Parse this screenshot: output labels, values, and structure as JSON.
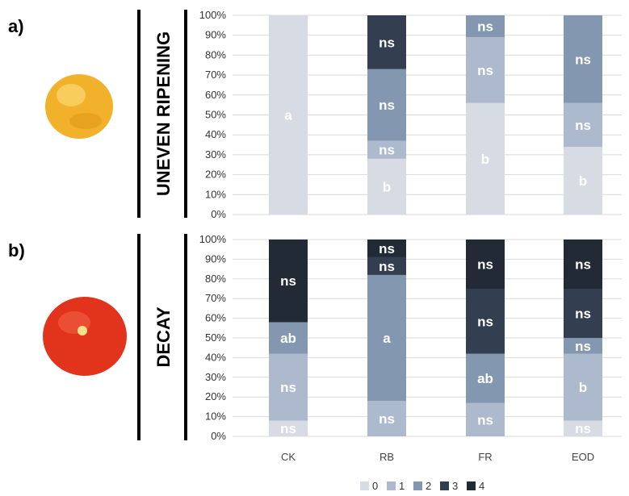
{
  "panel_labels": [
    "a)",
    "b)"
  ],
  "legend": {
    "items": [
      {
        "label": "0",
        "color": "#d6dbe4"
      },
      {
        "label": "1",
        "color": "#adb9cc"
      },
      {
        "label": "2",
        "color": "#8497b0"
      },
      {
        "label": "3",
        "color": "#333f50"
      },
      {
        "label": "4",
        "color": "#222a35"
      }
    ]
  },
  "images": [
    {
      "name": "yellow-tomato-image",
      "color": "#f2b12a"
    },
    {
      "name": "red-tomato-image",
      "color": "#e2341c"
    }
  ],
  "chart_data": [
    {
      "type": "bar",
      "stacked": true,
      "title": "UNEVEN RIPENING",
      "categories": [
        "CK",
        "RB",
        "FR",
        "EOD"
      ],
      "ylim": [
        0,
        100
      ],
      "yticks": [
        "0%",
        "10%",
        "20%",
        "30%",
        "40%",
        "50%",
        "60%",
        "70%",
        "80%",
        "90%",
        "100%"
      ],
      "grid": true,
      "series": [
        {
          "name": "0",
          "values": [
            100,
            28,
            56,
            34
          ],
          "labels": [
            "a",
            "b",
            "b",
            "b"
          ]
        },
        {
          "name": "1",
          "values": [
            0,
            9,
            33,
            22
          ],
          "labels": [
            "",
            "ns",
            "ns",
            "ns"
          ]
        },
        {
          "name": "2",
          "values": [
            0,
            36,
            11,
            44
          ],
          "labels": [
            "",
            "ns",
            "ns",
            "ns"
          ]
        },
        {
          "name": "3",
          "values": [
            0,
            27,
            0,
            0
          ],
          "labels": [
            "",
            "ns",
            "",
            ""
          ]
        },
        {
          "name": "4",
          "values": [
            0,
            0,
            0,
            0
          ],
          "labels": [
            "",
            "",
            "",
            ""
          ]
        }
      ]
    },
    {
      "type": "bar",
      "stacked": true,
      "title": "DECAY",
      "categories": [
        "CK",
        "RB",
        "FR",
        "EOD"
      ],
      "ylim": [
        0,
        100
      ],
      "yticks": [
        "0%",
        "10%",
        "20%",
        "30%",
        "40%",
        "50%",
        "60%",
        "70%",
        "80%",
        "90%",
        "100%"
      ],
      "grid": true,
      "series": [
        {
          "name": "0",
          "values": [
            8,
            0,
            0,
            8
          ],
          "labels": [
            "ns",
            "",
            "",
            "ns"
          ]
        },
        {
          "name": "1",
          "values": [
            34,
            18,
            17,
            34
          ],
          "labels": [
            "ns",
            "ns",
            "ns",
            "b"
          ]
        },
        {
          "name": "2",
          "values": [
            16,
            64,
            25,
            8
          ],
          "labels": [
            "ab",
            "a",
            "ab",
            "ns"
          ]
        },
        {
          "name": "3",
          "values": [
            0,
            9,
            33,
            25
          ],
          "labels": [
            "",
            "ns",
            "ns",
            "ns"
          ]
        },
        {
          "name": "4",
          "values": [
            42,
            9,
            25,
            25
          ],
          "labels": [
            "ns",
            "ns",
            "ns",
            "ns"
          ]
        }
      ]
    }
  ]
}
